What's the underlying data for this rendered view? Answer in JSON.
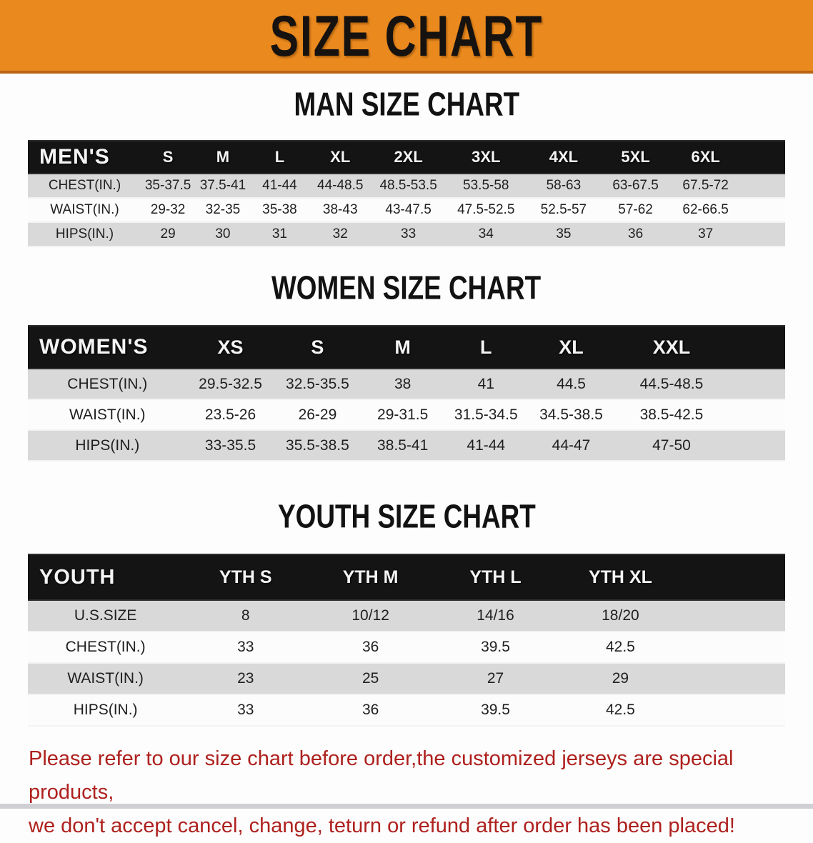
{
  "banner": {
    "title": "SIZE CHART"
  },
  "colors": {
    "banner_bg": "#E9891E",
    "banner_edge": "#BB6414",
    "header_bar": "#141414",
    "row_shaded": "#D9D9D9",
    "row_plain": "#FCFCFC",
    "note_red": "#AE211E"
  },
  "sections": [
    {
      "id": "men",
      "heading": "MAN SIZE CHART",
      "corner_label": "MEN'S",
      "sizes": [
        "S",
        "M",
        "L",
        "XL",
        "2XL",
        "3XL",
        "4XL",
        "5XL",
        "6XL"
      ],
      "rows": [
        {
          "label": "CHEST(IN.)",
          "values": [
            "35-37.5",
            "37.5-41",
            "41-44",
            "44-48.5",
            "48.5-53.5",
            "53.5-58",
            "58-63",
            "63-67.5",
            "67.5-72"
          ]
        },
        {
          "label": "WAIST(IN.)",
          "values": [
            "29-32",
            "32-35",
            "35-38",
            "38-43",
            "43-47.5",
            "47.5-52.5",
            "52.5-57",
            "57-62",
            "62-66.5"
          ]
        },
        {
          "label": "HIPS(IN.)",
          "values": [
            "29",
            "30",
            "31",
            "32",
            "33",
            "34",
            "35",
            "36",
            "37"
          ]
        }
      ]
    },
    {
      "id": "women",
      "heading": "WOMEN SIZE CHART",
      "corner_label": "WOMEN'S",
      "sizes": [
        "XS",
        "S",
        "M",
        "L",
        "XL",
        "XXL"
      ],
      "rows": [
        {
          "label": "CHEST(IN.)",
          "values": [
            "29.5-32.5",
            "32.5-35.5",
            "38",
            "41",
            "44.5",
            "44.5-48.5"
          ]
        },
        {
          "label": "WAIST(IN.)",
          "values": [
            "23.5-26",
            "26-29",
            "29-31.5",
            "31.5-34.5",
            "34.5-38.5",
            "38.5-42.5"
          ]
        },
        {
          "label": "HIPS(IN.)",
          "values": [
            "33-35.5",
            "35.5-38.5",
            "38.5-41",
            "41-44",
            "44-47",
            "47-50"
          ]
        }
      ]
    },
    {
      "id": "youth",
      "heading": "YOUTH SIZE CHART",
      "corner_label": "YOUTH",
      "sizes": [
        "YTH S",
        "YTH M",
        "YTH L",
        "YTH XL"
      ],
      "rows": [
        {
          "label": "U.S.SIZE",
          "values": [
            "8",
            "10/12",
            "14/16",
            "18/20"
          ]
        },
        {
          "label": "CHEST(IN.)",
          "values": [
            "33",
            "36",
            "39.5",
            "42.5"
          ]
        },
        {
          "label": "WAIST(IN.)",
          "values": [
            "23",
            "25",
            "27",
            "29"
          ]
        },
        {
          "label": "HIPS(IN.)",
          "values": [
            "33",
            "36",
            "39.5",
            "42.5"
          ]
        }
      ]
    }
  ],
  "note": {
    "line1": "Please refer to our size chart before order,the customized jerseys are special products,",
    "line2": "we don't accept cancel, change, teturn or refund after order has been placed!"
  }
}
